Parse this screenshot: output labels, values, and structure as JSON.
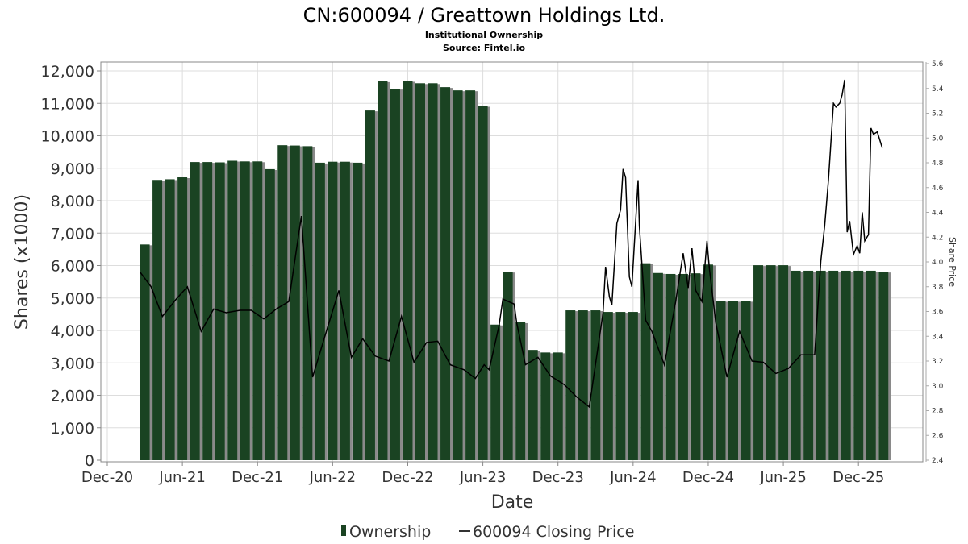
{
  "chart_data": {
    "type": "bar",
    "title": "CN:600094 / Greattown Holdings Ltd.",
    "subtitle": "Institutional Ownership",
    "source": "Source: Fintel.io",
    "xlabel": "Date",
    "ylabel": "Shares (x1000)",
    "y2label": "Share Price",
    "x_unit": "months since Dec 2020",
    "xlim": [
      -0.5,
      65.2
    ],
    "ylim": [
      0,
      12000
    ],
    "y2lim": [
      2.4,
      5.6
    ],
    "grid": true,
    "legend_position": "bottom-center",
    "x_ticks": [
      {
        "m": 0,
        "label": "Dec-20"
      },
      {
        "m": 6,
        "label": "Jun-21"
      },
      {
        "m": 12,
        "label": "Dec-21"
      },
      {
        "m": 18,
        "label": "Jun-22"
      },
      {
        "m": 24,
        "label": "Dec-22"
      },
      {
        "m": 30,
        "label": "Jun-23"
      },
      {
        "m": 36,
        "label": "Dec-23"
      },
      {
        "m": 42,
        "label": "Jun-24"
      },
      {
        "m": 48,
        "label": "Dec-24"
      },
      {
        "m": 54,
        "label": "Jun-25"
      },
      {
        "m": 60,
        "label": "Dec-25"
      }
    ],
    "y_ticks": [
      "0",
      "1,000",
      "2,000",
      "3,000",
      "4,000",
      "5,000",
      "6,000",
      "7,000",
      "8,000",
      "9,000",
      "10,000",
      "11,000",
      "12,000"
    ],
    "y_tick_values": [
      0,
      1000,
      2000,
      3000,
      4000,
      5000,
      6000,
      7000,
      8000,
      9000,
      10000,
      11000,
      12000
    ],
    "y2_ticks": [
      "2.4",
      "2.6",
      "2.8",
      "3.0",
      "3.2",
      "3.4",
      "3.6",
      "3.8",
      "4.0",
      "4.2",
      "4.4",
      "4.6",
      "4.8",
      "5.0",
      "5.2",
      "5.4",
      "5.6"
    ],
    "y2_tick_values": [
      2.4,
      2.6,
      2.8,
      3.0,
      3.2,
      3.4,
      3.6,
      3.8,
      4.0,
      4.2,
      4.4,
      4.6,
      4.8,
      5.0,
      5.2,
      5.4,
      5.6
    ],
    "series": [
      {
        "name": "Ownership",
        "type": "bar",
        "color": "#1a4322",
        "start_month": 3,
        "values": [
          6650,
          8640,
          8660,
          8720,
          9190,
          9190,
          9180,
          9230,
          9210,
          9210,
          8970,
          9710,
          9700,
          9680,
          9170,
          9200,
          9200,
          9170,
          10780,
          11680,
          11450,
          11690,
          11620,
          11620,
          11500,
          11400,
          11400,
          10920,
          4180,
          5810,
          4250,
          3400,
          3320,
          3320,
          4620,
          4620,
          4620,
          4570,
          4570,
          4570,
          6070,
          5770,
          5740,
          5740,
          5760,
          6030,
          4910,
          4910,
          4910,
          6010,
          6010,
          6010,
          5840,
          5840,
          5840,
          5840,
          5840,
          5840,
          5840,
          5810
        ]
      },
      {
        "name": "600094 Closing Price",
        "type": "line",
        "axis": "right",
        "color": "#000000",
        "points": [
          [
            2.6,
            3.92
          ],
          [
            3.5,
            3.8
          ],
          [
            4.4,
            3.56
          ],
          [
            5.5,
            3.7
          ],
          [
            6.4,
            3.8
          ],
          [
            7.5,
            3.44
          ],
          [
            8.5,
            3.62
          ],
          [
            9.5,
            3.59
          ],
          [
            10.6,
            3.61
          ],
          [
            11.5,
            3.61
          ],
          [
            12.5,
            3.54
          ],
          [
            13.5,
            3.62
          ],
          [
            14.5,
            3.68
          ],
          [
            15.5,
            4.37
          ],
          [
            16.4,
            3.07
          ],
          [
            17.5,
            3.44
          ],
          [
            18.5,
            3.77
          ],
          [
            19.5,
            3.23
          ],
          [
            20.4,
            3.38
          ],
          [
            21.4,
            3.24
          ],
          [
            22.5,
            3.2
          ],
          [
            23.5,
            3.56
          ],
          [
            24.5,
            3.19
          ],
          [
            25.5,
            3.35
          ],
          [
            26.4,
            3.36
          ],
          [
            27.4,
            3.17
          ],
          [
            28.5,
            3.13
          ],
          [
            29.4,
            3.06
          ],
          [
            30.1,
            3.17
          ],
          [
            30.5,
            3.13
          ],
          [
            31.3,
            3.49
          ],
          [
            31.6,
            3.7
          ],
          [
            32.5,
            3.66
          ],
          [
            32.7,
            3.51
          ],
          [
            33.4,
            3.17
          ],
          [
            34.4,
            3.23
          ],
          [
            35.4,
            3.08
          ],
          [
            36.5,
            3.01
          ],
          [
            37.5,
            2.91
          ],
          [
            38.5,
            2.83
          ],
          [
            39.6,
            3.59
          ],
          [
            39.8,
            3.96
          ],
          [
            40.1,
            3.72
          ],
          [
            40.3,
            3.65
          ],
          [
            40.7,
            4.31
          ],
          [
            41.0,
            4.42
          ],
          [
            41.2,
            4.75
          ],
          [
            41.4,
            4.68
          ],
          [
            41.7,
            3.88
          ],
          [
            41.9,
            3.8
          ],
          [
            42.4,
            4.66
          ],
          [
            42.5,
            4.29
          ],
          [
            43.0,
            3.53
          ],
          [
            43.5,
            3.44
          ],
          [
            44.5,
            3.17
          ],
          [
            45.4,
            3.68
          ],
          [
            46.0,
            4.07
          ],
          [
            46.4,
            3.79
          ],
          [
            46.7,
            4.11
          ],
          [
            47.0,
            3.77
          ],
          [
            47.5,
            3.68
          ],
          [
            47.9,
            4.17
          ],
          [
            48.1,
            3.94
          ],
          [
            48.6,
            3.51
          ],
          [
            49.5,
            3.07
          ],
          [
            50.5,
            3.44
          ],
          [
            51.5,
            3.2
          ],
          [
            52.4,
            3.19
          ],
          [
            53.4,
            3.1
          ],
          [
            54.4,
            3.14
          ],
          [
            55.4,
            3.25
          ],
          [
            56.5,
            3.25
          ],
          [
            57.0,
            4.01
          ],
          [
            57.3,
            4.29
          ],
          [
            57.6,
            4.66
          ],
          [
            58.0,
            5.28
          ],
          [
            58.2,
            5.25
          ],
          [
            58.5,
            5.28
          ],
          [
            58.7,
            5.35
          ],
          [
            58.9,
            5.47
          ],
          [
            59.1,
            4.24
          ],
          [
            59.3,
            4.33
          ],
          [
            59.6,
            4.06
          ],
          [
            59.9,
            4.13
          ],
          [
            60.1,
            4.07
          ],
          [
            60.3,
            4.4
          ],
          [
            60.5,
            4.17
          ],
          [
            60.8,
            4.22
          ],
          [
            61.0,
            5.08
          ],
          [
            61.2,
            5.03
          ],
          [
            61.5,
            5.05
          ],
          [
            61.9,
            4.92
          ]
        ]
      }
    ]
  }
}
